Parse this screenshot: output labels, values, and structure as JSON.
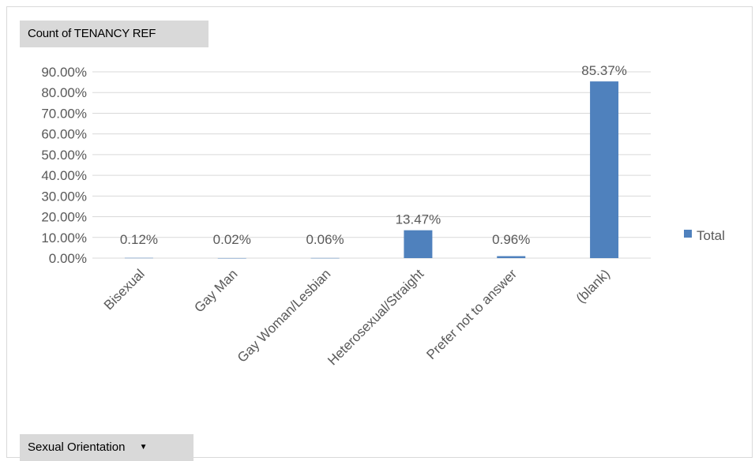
{
  "values_field_button": {
    "label": "Count of TENANCY REF"
  },
  "axis_field_button": {
    "label": "Sexual Orientation",
    "icon": "dropdown-arrow-icon"
  },
  "colors": {
    "bar": "#4f81bd",
    "grid": "#d9d9d9",
    "text": "#595959"
  },
  "chart_data": {
    "type": "bar",
    "categories": [
      "Bisexual",
      "Gay Man",
      "Gay Woman/Lesbian",
      "Heterosexual/Straight",
      "Prefer not to answer",
      "(blank)"
    ],
    "series": [
      {
        "name": "Total",
        "values": [
          0.12,
          0.02,
          0.06,
          13.47,
          0.96,
          85.37
        ]
      }
    ],
    "data_labels": [
      "0.12%",
      "0.02%",
      "0.06%",
      "13.47%",
      "0.96%",
      "85.37%"
    ],
    "y_ticks": [
      "0.00%",
      "10.00%",
      "20.00%",
      "30.00%",
      "40.00%",
      "50.00%",
      "60.00%",
      "70.00%",
      "80.00%",
      "90.00%"
    ],
    "ylim": [
      0,
      90
    ],
    "grid": true,
    "legend_position": "right"
  }
}
